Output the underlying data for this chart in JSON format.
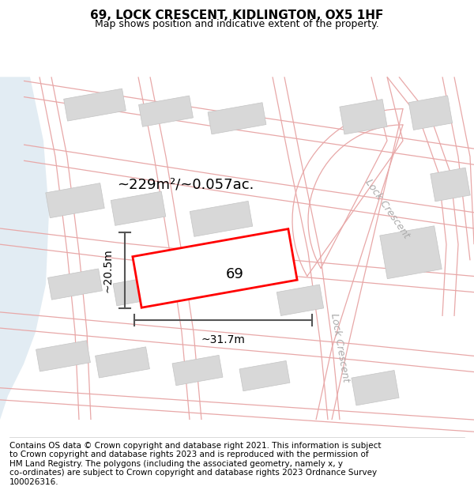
{
  "title": "69, LOCK CRESCENT, KIDLINGTON, OX5 1HF",
  "subtitle": "Map shows position and indicative extent of the property.",
  "footer": "Contains OS data © Crown copyright and database right 2021. This information is subject\nto Crown copyright and database rights 2023 and is reproduced with the permission of\nHM Land Registry. The polygons (including the associated geometry, namely x, y\nco-ordinates) are subject to Crown copyright and database rights 2023 Ordnance Survey\n100026316.",
  "map_bg": "#ffffff",
  "road_color": "#e8a8a8",
  "road_lw": 0.8,
  "building_fill": "#d8d8d8",
  "building_edge": "#c4c4c4",
  "water_color": "#dbe8f0",
  "property_color": "#ff0000",
  "property_fill": "#ffffff",
  "dimension_color": "#555555",
  "area_text": "~229m²/~0.057ac.",
  "property_label": "69",
  "width_label": "~31.7m",
  "height_label": "~20.5m",
  "road_label_color": "#aaaaaa",
  "title_fontsize": 11,
  "subtitle_fontsize": 9,
  "footer_fontsize": 7.5
}
